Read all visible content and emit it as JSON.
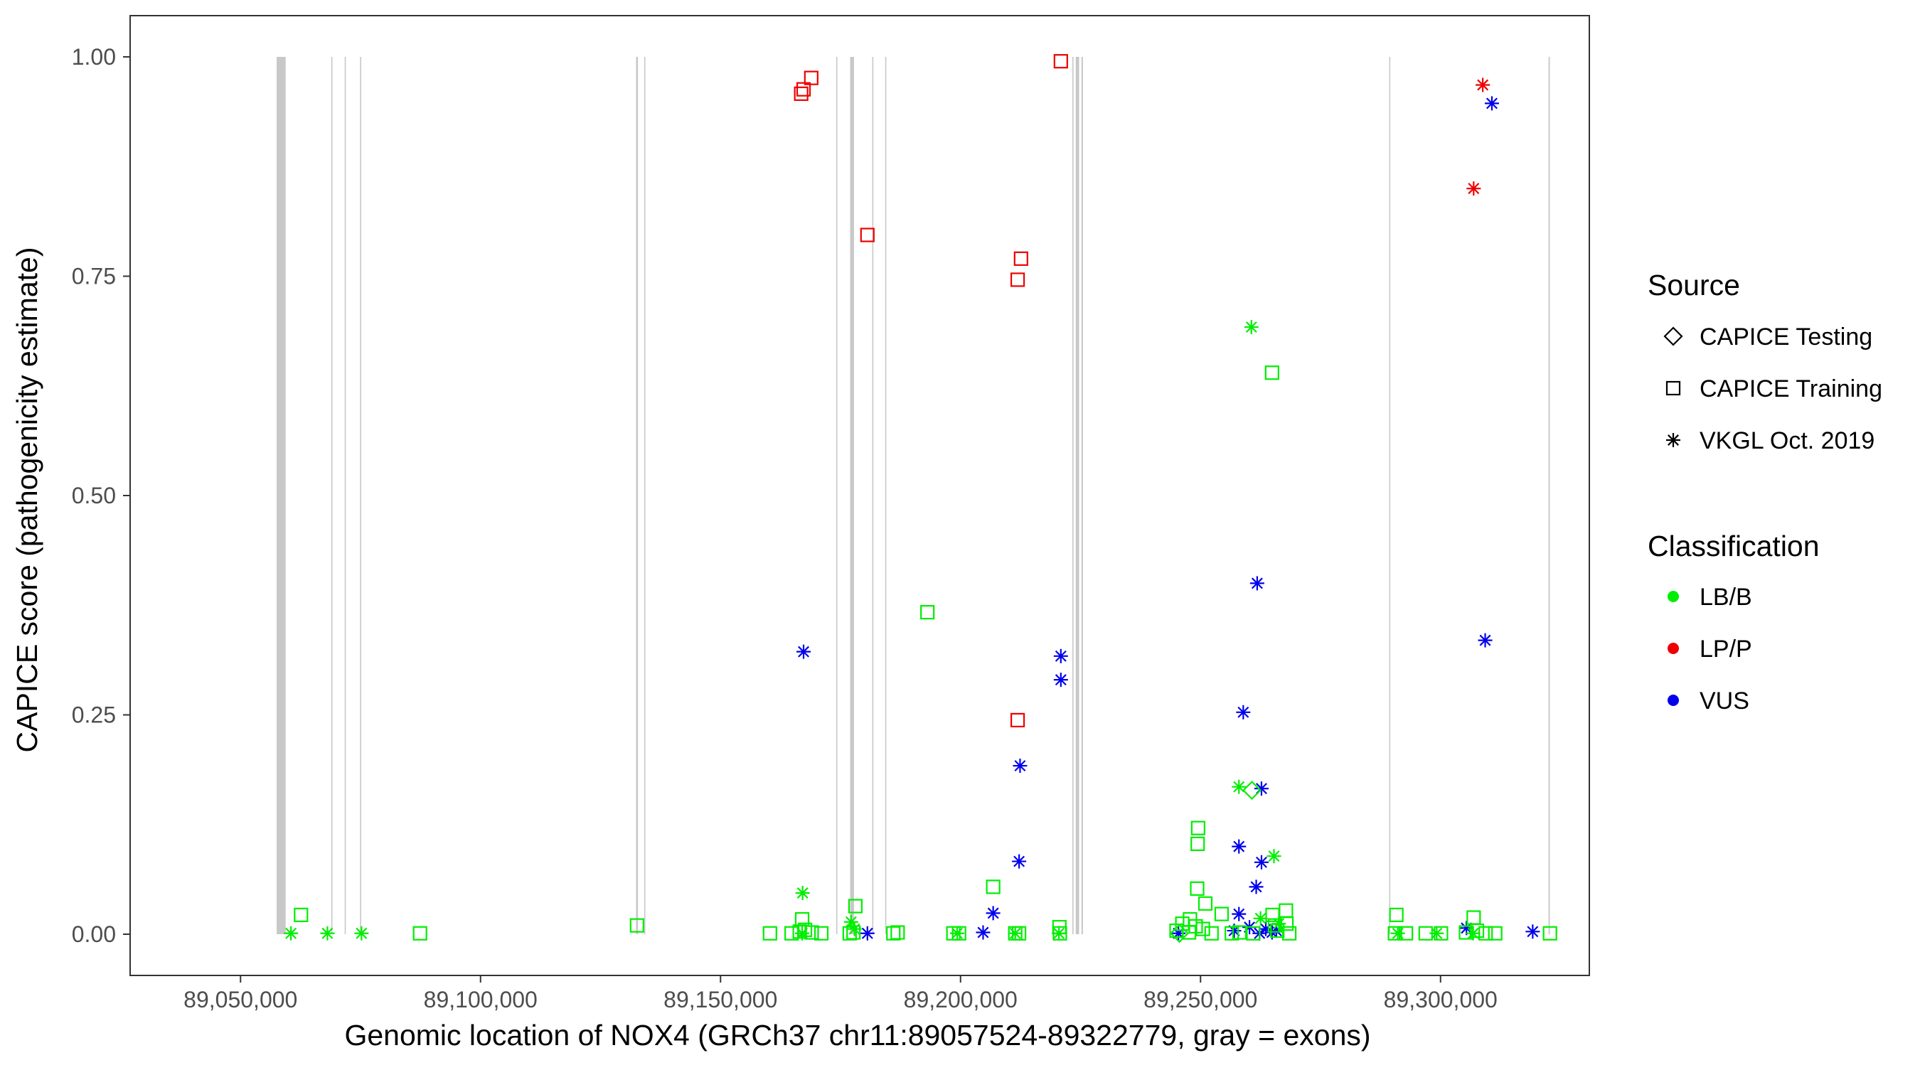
{
  "chart_data": {
    "type": "scatter",
    "title": "",
    "xlabel": "Genomic location of NOX4 (GRCh37 chr11:89057524-89322779, gray = exons)",
    "ylabel": "CAPICE score (pathogenicity estimate)",
    "xlim": [
      89027000,
      89331000
    ],
    "ylim": [
      -0.047,
      1.047
    ],
    "x_ticks": [
      89050000,
      89100000,
      89150000,
      89200000,
      89250000,
      89300000
    ],
    "x_tick_labels": [
      "89,050,000",
      "89,100,000",
      "89,150,000",
      "89,200,000",
      "89,250,000",
      "89,300,000"
    ],
    "y_ticks": [
      0,
      0.25,
      0.5,
      0.75,
      1.0
    ],
    "y_tick_labels": [
      "0.00",
      "0.25",
      "0.50",
      "0.75",
      "1.00"
    ],
    "grid": "off",
    "exon_color": "#c8c8c8",
    "exons": [
      [
        89057524,
        89059400
      ],
      [
        89068900,
        89069150
      ],
      [
        89071700,
        89071900
      ],
      [
        89074900,
        89075100
      ],
      [
        89132400,
        89132800
      ],
      [
        89134100,
        89134300
      ],
      [
        89174100,
        89174300
      ],
      [
        89177000,
        89177800
      ],
      [
        89181600,
        89181800
      ],
      [
        89184300,
        89184500
      ],
      [
        89223300,
        89223500
      ],
      [
        89224000,
        89224700
      ],
      [
        89225200,
        89225500
      ],
      [
        89289300,
        89289500
      ],
      [
        89322500,
        89322779
      ]
    ],
    "legend": {
      "placement": "right",
      "source": {
        "title": "Source",
        "items": [
          {
            "label": "CAPICE Testing",
            "shape": "diamond"
          },
          {
            "label": "CAPICE Training",
            "shape": "square"
          },
          {
            "label": "VKGL Oct. 2019",
            "shape": "asterisk"
          }
        ]
      },
      "classification": {
        "title": "Classification",
        "items": [
          {
            "label": "LB/B",
            "color": "#00ee00"
          },
          {
            "label": "LP/P",
            "color": "#ee0000"
          },
          {
            "label": "VUS",
            "color": "#0000ee"
          }
        ]
      }
    },
    "series": [
      {
        "classification": "LP/P",
        "source": "CAPICE Training",
        "x": [
          89166800,
          89167300,
          89168900,
          89180600,
          89211900,
          89212600,
          89220900,
          89211900
        ],
        "y": [
          0.958,
          0.963,
          0.976,
          0.797,
          0.746,
          0.77,
          0.995,
          0.244
        ]
      },
      {
        "classification": "LP/P",
        "source": "VKGL Oct. 2019",
        "x": [
          89308800,
          89306900
        ],
        "y": [
          0.968,
          0.85
        ]
      },
      {
        "classification": "VUS",
        "source": "VKGL Oct. 2019",
        "x": [
          89310700,
          89167300,
          89309300,
          89220900,
          89220900,
          89261800,
          89258900,
          89212400,
          89262700,
          89212200,
          89258000,
          89262700,
          89261600,
          89206800,
          89258000,
          89180600,
          89204700,
          89245400,
          89257000,
          89260200,
          89263600,
          89265800,
          89305400,
          89319200,
          89262300,
          89264900
        ],
        "y": [
          0.947,
          0.322,
          0.335,
          0.317,
          0.29,
          0.4,
          0.253,
          0.192,
          0.166,
          0.083,
          0.1,
          0.082,
          0.054,
          0.024,
          0.023,
          0.001,
          0.002,
          0.001,
          0.004,
          0.008,
          0.006,
          0.004,
          0.007,
          0.003,
          0.001,
          0.002
        ]
      },
      {
        "classification": "LB/B",
        "source": "VKGL Oct. 2019",
        "x": [
          89260600,
          89258000,
          89265300,
          89167100,
          89177200,
          89177900,
          89060500,
          89068100,
          89075200,
          89167000,
          89199300,
          89211400,
          89220500,
          89262500,
          89266300,
          89291100,
          89299200,
          89306800
        ],
        "y": [
          0.692,
          0.168,
          0.089,
          0.047,
          0.014,
          0.006,
          0.001,
          0.001,
          0.001,
          0.001,
          0.001,
          0.001,
          0.001,
          0.018,
          0.012,
          0.001,
          0.001,
          0.001
        ]
      },
      {
        "classification": "LB/B",
        "source": "CAPICE Testing",
        "x": [
          89260700,
          89245600
        ],
        "y": [
          0.164,
          0.001
        ]
      },
      {
        "classification": "LB/B",
        "source": "CAPICE Training",
        "x": [
          89264900,
          89193100,
          89249500,
          89249400,
          89206800,
          89249300,
          89251000,
          89178100,
          89254400,
          89062600,
          89132600,
          89167000,
          89267800,
          89290800,
          89306900,
          89087400,
          89160300,
          89164800,
          89166500,
          89167600,
          89169000,
          89171000,
          89176900,
          89177700,
          89186000,
          89186900,
          89198500,
          89199700,
          89211400,
          89212200,
          89220600,
          89220700,
          89245000,
          89246200,
          89247600,
          89249000,
          89250500,
          89252300,
          89256500,
          89258100,
          89261000,
          89265000,
          89266000,
          89267900,
          89268500,
          89290500,
          89292800,
          89296900,
          89300100,
          89305300,
          89307600,
          89309400,
          89311400,
          89322800,
          89247800,
          89265500
        ],
        "y": [
          0.64,
          0.367,
          0.121,
          0.103,
          0.054,
          0.052,
          0.035,
          0.032,
          0.023,
          0.022,
          0.01,
          0.017,
          0.027,
          0.022,
          0.019,
          0.001,
          0.001,
          0.001,
          0.003,
          0.005,
          0.002,
          0.001,
          0.001,
          0.002,
          0.001,
          0.002,
          0.001,
          0.001,
          0.001,
          0.001,
          0.008,
          0.001,
          0.004,
          0.012,
          0.002,
          0.009,
          0.006,
          0.001,
          0.001,
          0.002,
          0.001,
          0.022,
          0.004,
          0.012,
          0.001,
          0.001,
          0.001,
          0.001,
          0.001,
          0.002,
          0.004,
          0.001,
          0.001,
          0.001,
          0.017,
          0.01
        ]
      }
    ]
  }
}
